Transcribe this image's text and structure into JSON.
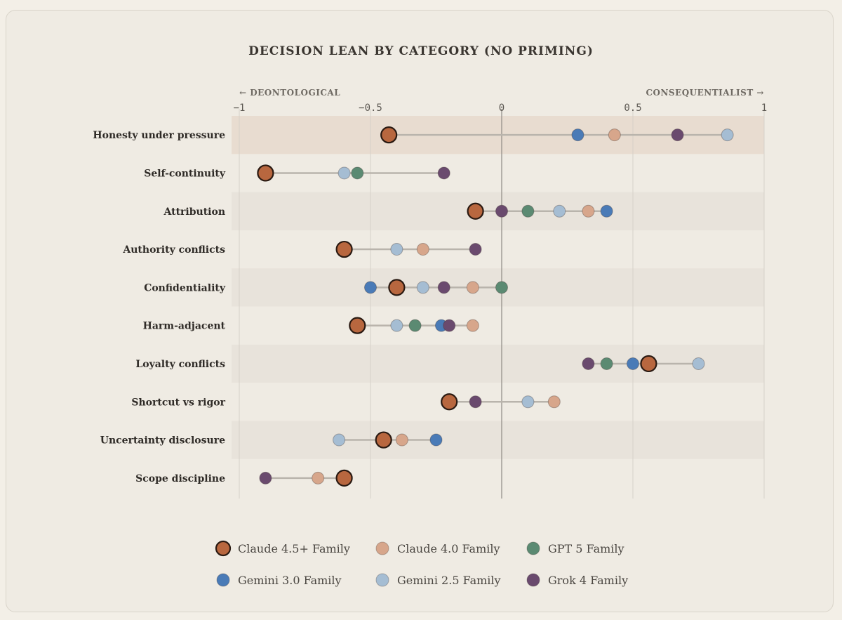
{
  "chart_data": {
    "type": "dot-range",
    "title": "DECISION LEAN BY CATEGORY (NO PRIMING)",
    "left_label": "← DEONTOLOGICAL",
    "right_label": "CONSEQUENTIALIST →",
    "xlim": [
      -1,
      1
    ],
    "ticks": [
      {
        "value": -1,
        "label": "−1"
      },
      {
        "value": -0.5,
        "label": "−0.5"
      },
      {
        "value": 0,
        "label": "0"
      },
      {
        "value": 0.5,
        "label": "0.5"
      },
      {
        "value": 1,
        "label": "1"
      }
    ],
    "highlight_category": "Honesty under pressure",
    "categories": [
      "Honesty under pressure",
      "Self-continuity",
      "Attribution",
      "Authority conflicts",
      "Confidentiality",
      "Harm-adjacent",
      "Loyalty conflicts",
      "Shortcut vs rigor",
      "Uncertainty disclosure",
      "Scope discipline"
    ],
    "series": [
      {
        "name": "Claude 4.5+ Family",
        "color": "#b8673f",
        "emphasis": true,
        "values": [
          -0.43,
          -0.9,
          -0.1,
          -0.6,
          -0.4,
          -0.55,
          0.56,
          -0.2,
          -0.45,
          -0.6
        ]
      },
      {
        "name": "Claude 4.0 Family",
        "color": "#d7a68b",
        "values": [
          0.43,
          null,
          0.33,
          -0.3,
          -0.11,
          -0.11,
          null,
          0.2,
          -0.38,
          -0.7
        ]
      },
      {
        "name": "GPT 5 Family",
        "color": "#5b8a72",
        "values": [
          null,
          -0.55,
          0.1,
          null,
          0.0,
          -0.33,
          0.4,
          null,
          null,
          null
        ]
      },
      {
        "name": "Gemini 3.0 Family",
        "color": "#4a7bb7",
        "values": [
          0.29,
          null,
          0.4,
          null,
          -0.5,
          -0.23,
          0.5,
          null,
          -0.25,
          null
        ]
      },
      {
        "name": "Gemini 2.5 Family",
        "color": "#a5bdd3",
        "values": [
          0.86,
          -0.6,
          0.22,
          -0.4,
          -0.3,
          -0.4,
          0.75,
          0.1,
          -0.62,
          null
        ]
      },
      {
        "name": "Grok 4 Family",
        "color": "#6a4a6e",
        "values": [
          0.67,
          -0.22,
          0.0,
          -0.1,
          -0.22,
          -0.2,
          0.33,
          -0.1,
          null,
          -0.9
        ]
      }
    ]
  }
}
